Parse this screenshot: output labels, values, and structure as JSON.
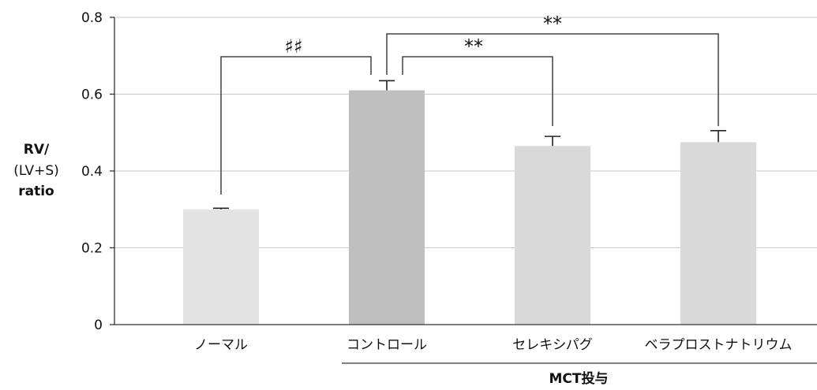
{
  "chart_data": {
    "type": "bar",
    "categories": [
      "ノーマル",
      "コントロール",
      "セレキシパグ",
      "ベラプロストナトリウム"
    ],
    "values": [
      0.3,
      0.61,
      0.465,
      0.475
    ],
    "errors": [
      0.003,
      0.025,
      0.025,
      0.03
    ],
    "bar_colors": [
      "#e3e3e3",
      "#bfbfbf",
      "#d9d9d9",
      "#d9d9d9"
    ],
    "ylim": [
      0,
      0.8
    ],
    "yticks": [
      "0",
      "0.2",
      "0.4",
      "0.6",
      "0.8"
    ],
    "ylabel": [
      "RV/",
      "(LV+S)",
      "ratio"
    ],
    "xlabel": "",
    "grid": true,
    "group_label": "MCT投与",
    "significance": [
      {
        "from": 0,
        "to": 1,
        "label": "♯♯"
      },
      {
        "from": 1,
        "to": 2,
        "label": "**"
      },
      {
        "from": 1,
        "to": 3,
        "label": "**"
      }
    ]
  }
}
